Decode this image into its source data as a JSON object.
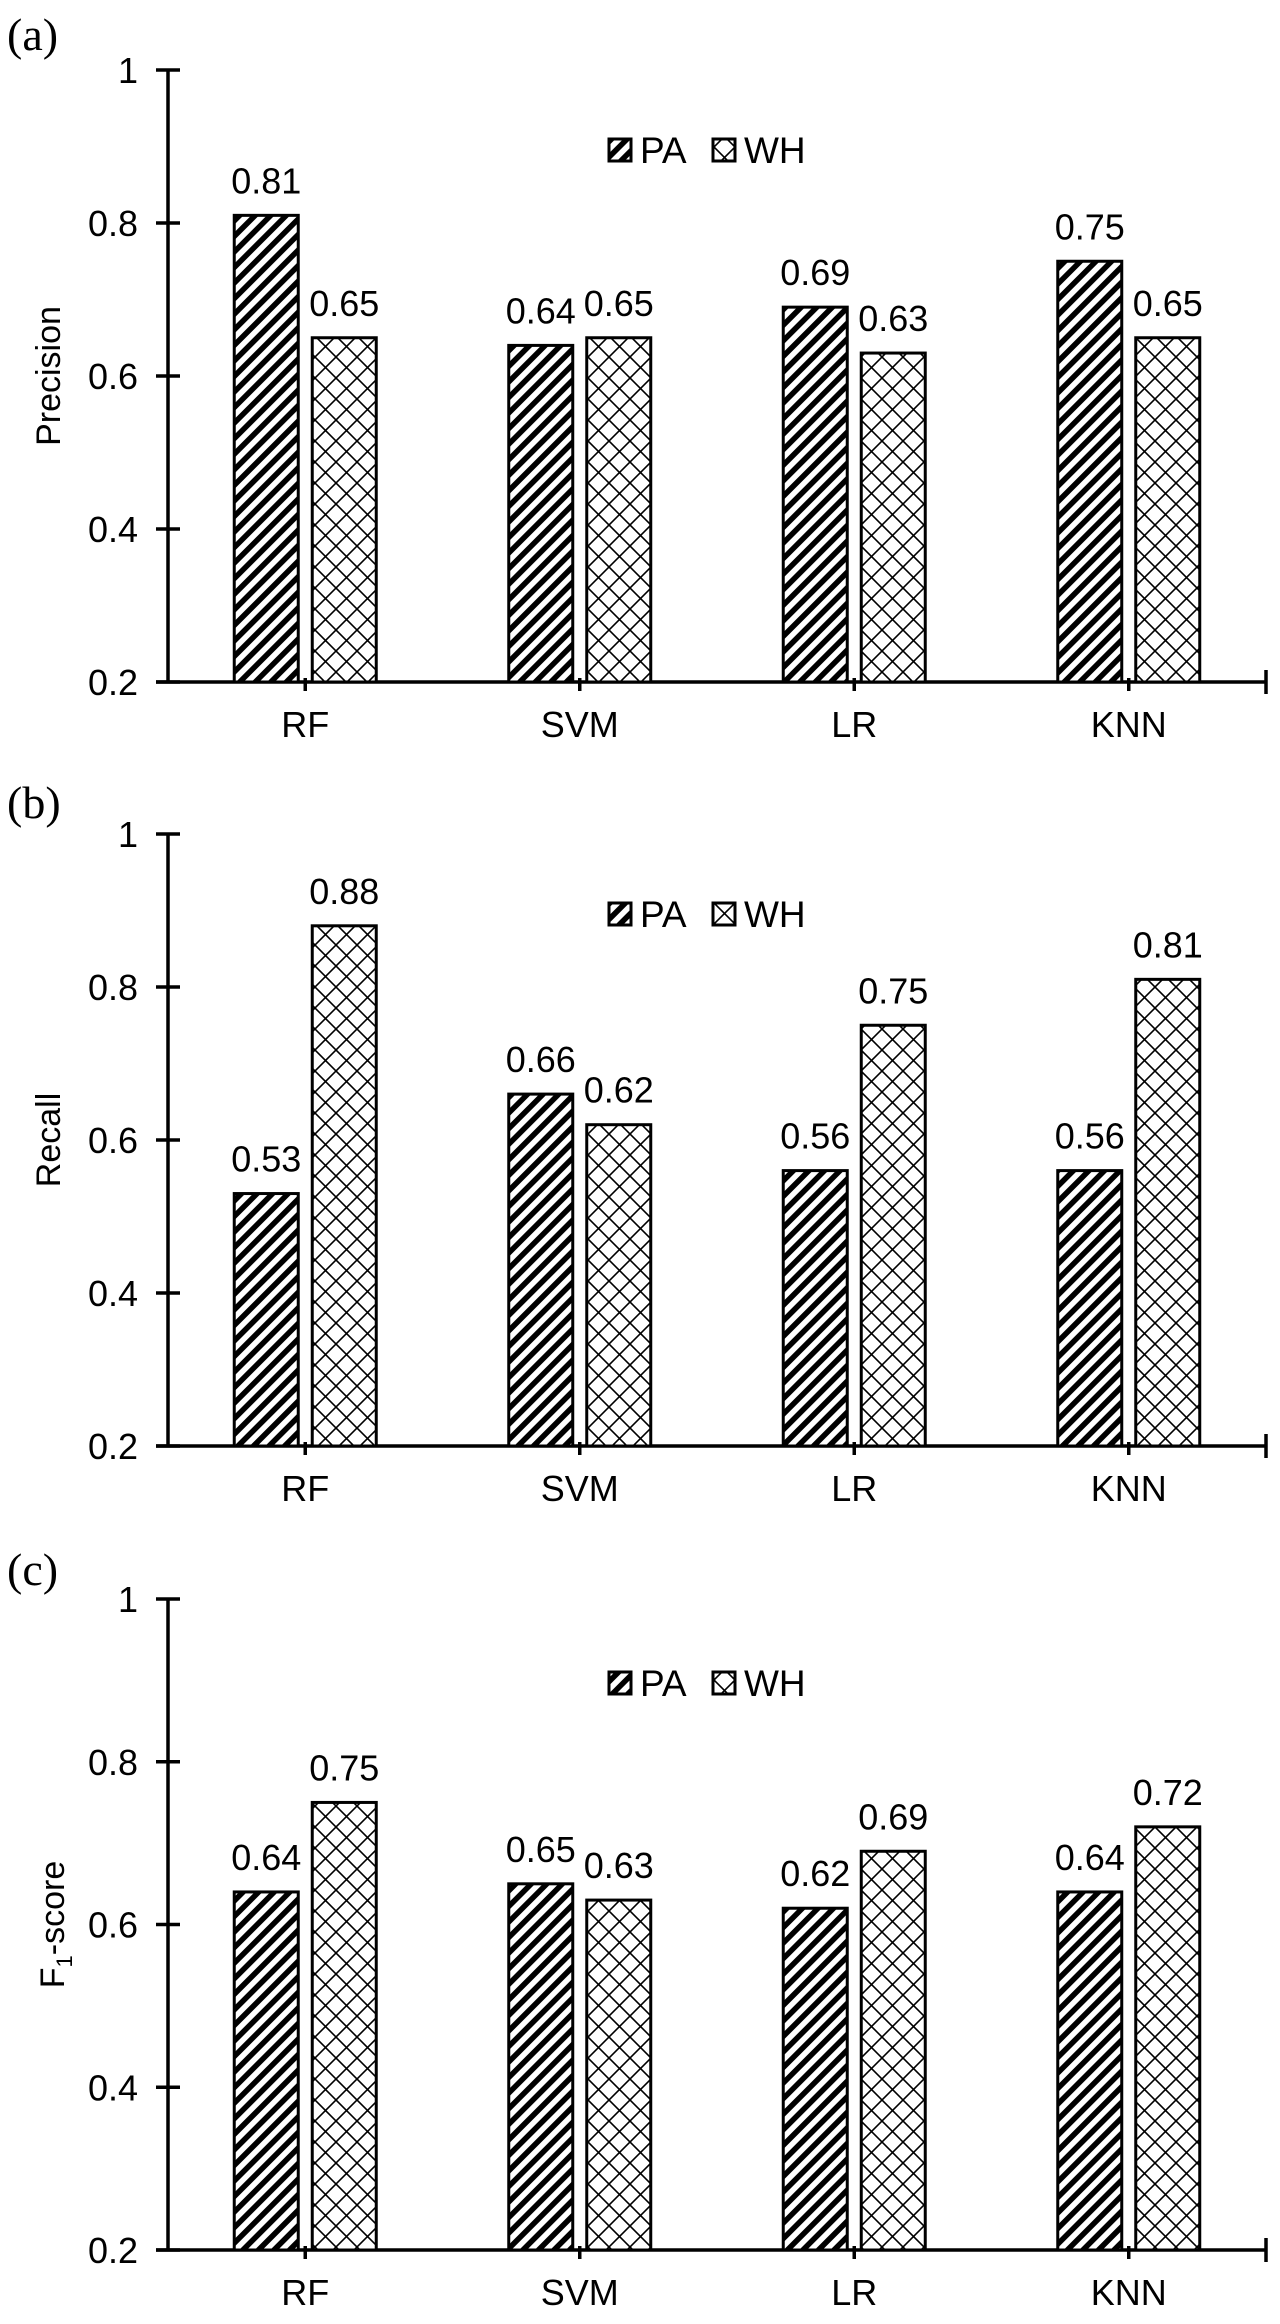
{
  "figure": {
    "legend": [
      {
        "name": "PA",
        "pattern": "diagonal-stripes"
      },
      {
        "name": "WH",
        "pattern": "diagonal-crosshatch"
      }
    ],
    "colors": {
      "ink": "#000000",
      "background": "#ffffff"
    }
  },
  "chart_data": [
    {
      "panel_label": "(a)",
      "type": "bar",
      "title": "",
      "xlabel": "",
      "ylabel": "Precision",
      "ylim": [
        0.2,
        1.0
      ],
      "yticks": [
        0.2,
        0.4,
        0.6,
        0.8,
        1.0
      ],
      "ytick_labels": [
        "0.2",
        "0.4",
        "0.6",
        "0.8",
        "1"
      ],
      "grid": false,
      "legend_position": "top-center",
      "categories": [
        "RF",
        "SVM",
        "LR",
        "KNN"
      ],
      "series": [
        {
          "name": "PA",
          "values": [
            0.81,
            0.64,
            0.69,
            0.75
          ],
          "labels": [
            "0.81",
            "0.64",
            "0.69",
            "0.75"
          ]
        },
        {
          "name": "WH",
          "values": [
            0.65,
            0.65,
            0.63,
            0.65
          ],
          "labels": [
            "0.65",
            "0.65",
            "0.63",
            "0.65"
          ]
        }
      ]
    },
    {
      "panel_label": "(b)",
      "type": "bar",
      "title": "",
      "xlabel": "",
      "ylabel": "Recall",
      "ylim": [
        0.2,
        1.0
      ],
      "yticks": [
        0.2,
        0.4,
        0.6,
        0.8,
        1.0
      ],
      "ytick_labels": [
        "0.2",
        "0.4",
        "0.6",
        "0.8",
        "1"
      ],
      "grid": false,
      "legend_position": "top-center",
      "categories": [
        "RF",
        "SVM",
        "LR",
        "KNN"
      ],
      "series": [
        {
          "name": "PA",
          "values": [
            0.53,
            0.66,
            0.56,
            0.56
          ],
          "labels": [
            "0.53",
            "0.66",
            "0.56",
            "0.56"
          ]
        },
        {
          "name": "WH",
          "values": [
            0.88,
            0.62,
            0.75,
            0.81
          ],
          "labels": [
            "0.88",
            "0.62",
            "0.75",
            "0.81"
          ]
        }
      ]
    },
    {
      "panel_label": "(c)",
      "type": "bar",
      "title": "",
      "xlabel": "",
      "ylabel": "F1-score",
      "ylabel_main": "F",
      "ylabel_sub": "1",
      "ylabel_rest": "-score",
      "ylim": [
        0.2,
        1.0
      ],
      "yticks": [
        0.2,
        0.4,
        0.6,
        0.8,
        1.0
      ],
      "ytick_labels": [
        "0.2",
        "0.4",
        "0.6",
        "0.8",
        "1"
      ],
      "grid": false,
      "legend_position": "top-center",
      "categories": [
        "RF",
        "SVM",
        "LR",
        "KNN"
      ],
      "series": [
        {
          "name": "PA",
          "values": [
            0.64,
            0.65,
            0.62,
            0.64
          ],
          "labels": [
            "0.64",
            "0.65",
            "0.62",
            "0.64"
          ]
        },
        {
          "name": "WH",
          "values": [
            0.75,
            0.63,
            0.69,
            0.72
          ],
          "labels": [
            "0.75",
            "0.63",
            "0.69",
            "0.72"
          ]
        }
      ]
    }
  ]
}
